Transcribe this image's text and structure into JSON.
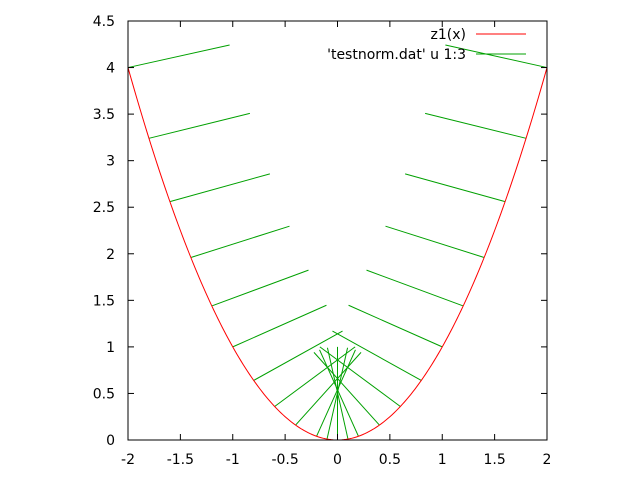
{
  "chart_data": {
    "type": "line",
    "title": "",
    "xlabel": "",
    "ylabel": "",
    "xlim": [
      -2,
      2
    ],
    "ylim": [
      0,
      4.5
    ],
    "x_ticks": [
      -2,
      -1.5,
      -1,
      -0.5,
      0,
      0.5,
      1,
      1.5,
      2
    ],
    "x_tick_labels": [
      "-2",
      "-1.5",
      "-1",
      "-0.5",
      "0",
      "0.5",
      "1",
      "1.5",
      "2"
    ],
    "y_ticks": [
      0,
      0.5,
      1,
      1.5,
      2,
      2.5,
      3,
      3.5,
      4,
      4.5
    ],
    "y_tick_labels": [
      "0",
      "0.5",
      "1",
      "1.5",
      "2",
      "2.5",
      "3",
      "3.5",
      "4",
      "4.5"
    ],
    "grid": false,
    "legend_position": "top-right",
    "series": [
      {
        "name": "z1(x)",
        "kind": "function",
        "formula": "x^2",
        "color": "#ff0000"
      },
      {
        "name": "'testnorm.dat' u 1:3",
        "kind": "normal_vectors",
        "color": "#00a000",
        "x": [
          -2.0,
          -1.8,
          -1.6,
          -1.4,
          -1.2,
          -1.0,
          -0.8,
          -0.6,
          -0.4,
          -0.2,
          -0.1,
          0.0,
          0.1,
          0.2,
          0.4,
          0.6,
          0.8,
          1.0,
          1.2,
          1.4,
          1.6,
          1.8,
          2.0
        ],
        "note_length": 1.0
      }
    ]
  }
}
